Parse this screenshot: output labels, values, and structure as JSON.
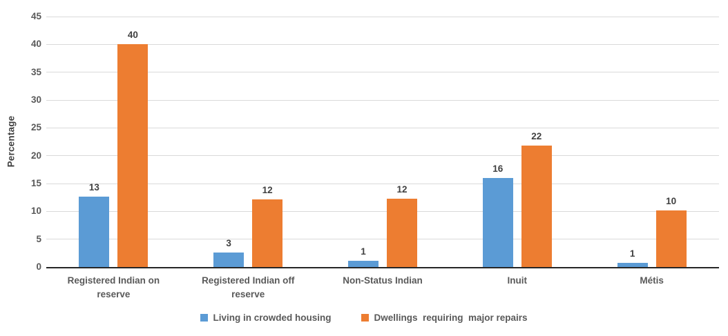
{
  "chart_data": {
    "type": "bar",
    "title": "",
    "xlabel": "",
    "ylabel": "Percentage",
    "categories": [
      "Registered Indian on reserve",
      "Registered Indian off reserve",
      "Non-Status Indian",
      "Inuit",
      "Métis"
    ],
    "series": [
      {
        "name": "Living in crowded housing",
        "color": "#5B9BD5",
        "values": [
          12.7,
          2.6,
          1.1,
          16.0,
          0.7
        ],
        "labels": [
          "13",
          "3",
          "1",
          "16",
          "1"
        ]
      },
      {
        "name": "Dwellings  requiring  major repairs",
        "color": "#ED7D31",
        "values": [
          40.0,
          12.2,
          12.3,
          21.8,
          10.2
        ],
        "labels": [
          "40",
          "12",
          "12",
          "22",
          "10"
        ]
      }
    ],
    "ylim": [
      0,
      45
    ],
    "ytick_step": 5,
    "grid": true,
    "legend_position": "bottom"
  },
  "colors": {
    "grid": "#D9D9D9",
    "axis": "#262626",
    "tick_text": "#595959",
    "value_text": "#404040"
  }
}
